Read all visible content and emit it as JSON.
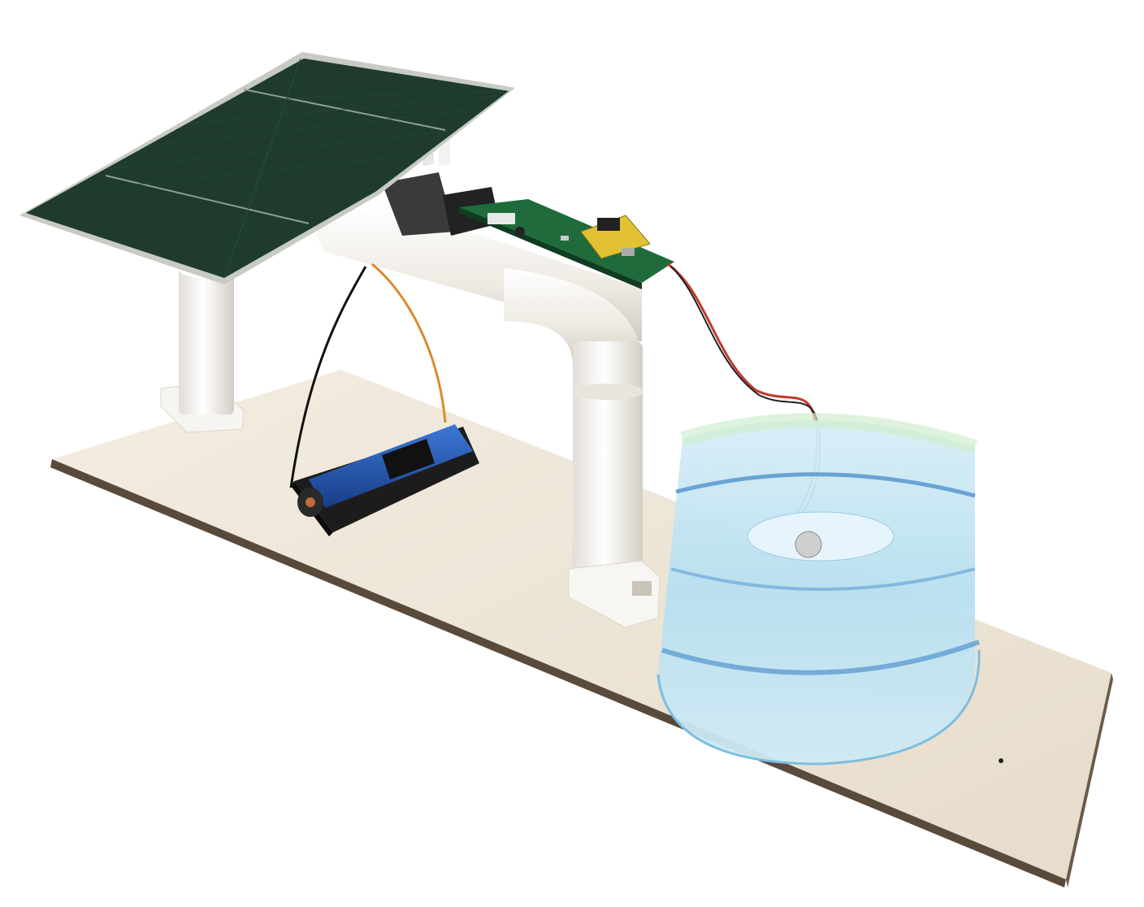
{
  "scene": {
    "subject": "solar-powered-ultrasonic-humidifier-model",
    "colors": {
      "background": "#ffffff",
      "board_top": "#efe8d9",
      "board_edge": "#5a4a3c",
      "solar_panel": "#1e3b2c",
      "solar_frame": "#c7cbc3",
      "pipe": "#f4f2ee",
      "pipe_shadow": "#d8d4cc",
      "pcb": "#1f6b3b",
      "transformer": "#e2c233",
      "battery": "#1f4fa8",
      "battery_holder": "#1c1c1c",
      "wire_red": "#c0392b",
      "wire_black": "#111111",
      "wire_orange": "#d98a2b",
      "water": "#bfe3f2",
      "bottle_edge": "#7fbde0"
    },
    "icons": [
      "solar-panel-icon",
      "battery-icon",
      "circuit-board-icon",
      "water-container-icon"
    ]
  }
}
